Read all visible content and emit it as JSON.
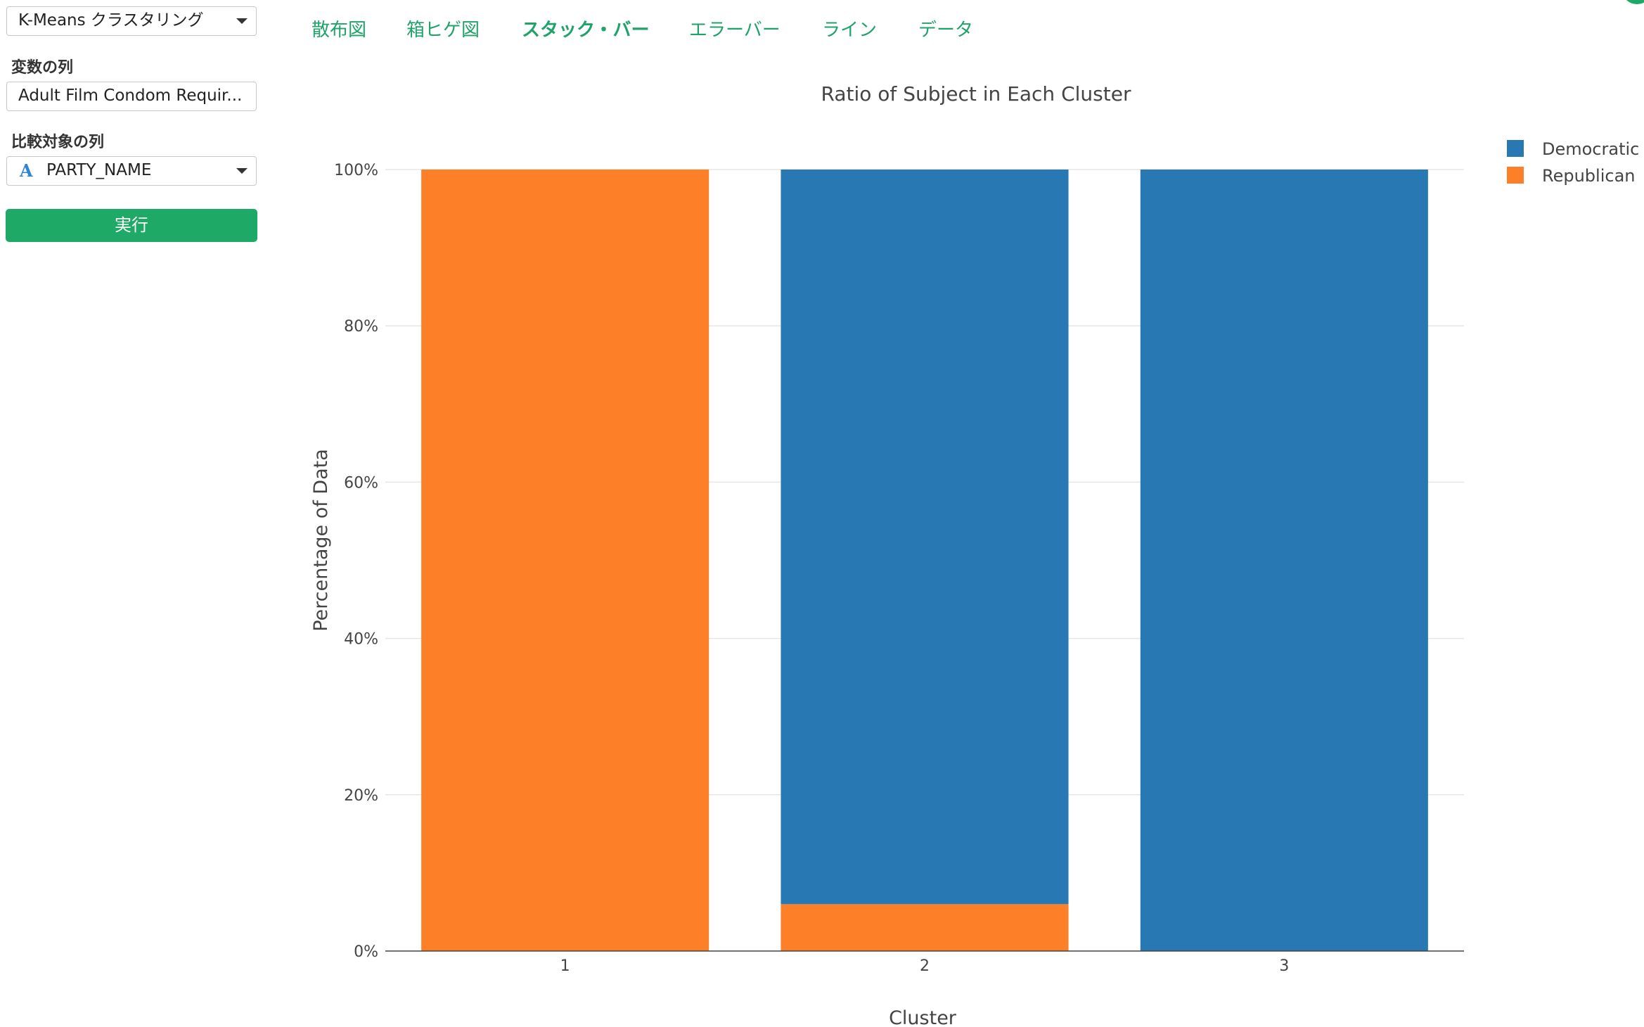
{
  "sidebar": {
    "algorithm_select": "K-Means クラスタリング",
    "variables_label": "変数の列",
    "variables_value": "Adult Film Condom Requir...",
    "compare_label": "比較対象の列",
    "compare_type_icon": "A",
    "compare_value": "PARTY_NAME",
    "run_label": "実行"
  },
  "tabs": [
    {
      "label": "散布図",
      "active": false
    },
    {
      "label": "箱ヒゲ図",
      "active": false
    },
    {
      "label": "スタック・バー",
      "active": true
    },
    {
      "label": "エラーバー",
      "active": false
    },
    {
      "label": "ライン",
      "active": false
    },
    {
      "label": "データ",
      "active": false
    }
  ],
  "colors": {
    "accent": "#1ea966",
    "democratic": "#2878b4",
    "republican": "#fd7f28"
  },
  "chart_data": {
    "type": "bar",
    "stacked": true,
    "title": "Ratio of Subject in Each Cluster",
    "xlabel": "Cluster",
    "ylabel": "Percentage of Data",
    "categories": [
      "1",
      "2",
      "3"
    ],
    "series": [
      {
        "name": "Democratic",
        "color": "#2878b4",
        "values": [
          0,
          94,
          100
        ]
      },
      {
        "name": "Republican",
        "color": "#fd7f28",
        "values": [
          100,
          6,
          0
        ]
      }
    ],
    "ylim": [
      0,
      100
    ],
    "yticks": [
      "0%",
      "20%",
      "40%",
      "60%",
      "80%",
      "100%"
    ],
    "grid": true,
    "legend_position": "top-right"
  }
}
